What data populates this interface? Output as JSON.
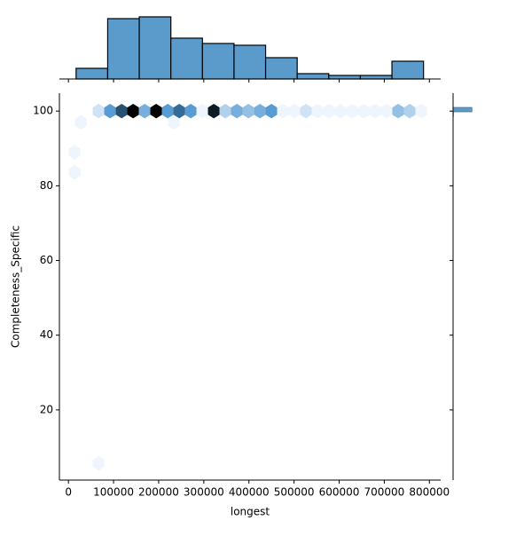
{
  "chart_data": {
    "type": "hexbin",
    "x_label": "longest",
    "y_label": "Completeness_Specific",
    "xlim": [
      -20000,
      825000
    ],
    "ylim": [
      1.2,
      104.8
    ],
    "xticks": [
      0,
      100000,
      200000,
      300000,
      400000,
      500000,
      600000,
      700000,
      800000
    ],
    "yticks": [
      20,
      40,
      60,
      80,
      100
    ],
    "cmap": [
      "#eef5fc",
      "#4a93cf",
      "#000000"
    ],
    "hexbins": {
      "x": [
        66800,
        92300,
        117900,
        143400,
        169000,
        194500,
        220000,
        245600,
        271100,
        296700,
        322200,
        347700,
        373300,
        398800,
        424400,
        449900,
        475400,
        501000,
        526500,
        552100,
        577600,
        603100,
        628700,
        654200,
        679800,
        705300,
        730800,
        756400,
        781900,
        27500,
        233800,
        13750,
        13750,
        66800
      ],
      "y": [
        100,
        100,
        100,
        100,
        100,
        100,
        100,
        100,
        100,
        100,
        100,
        100,
        100,
        100,
        100,
        100,
        100,
        100,
        100,
        100,
        100,
        100,
        100,
        100,
        100,
        100,
        100,
        100,
        100,
        97,
        97,
        89,
        83.6,
        5.7
      ],
      "counts": [
        2,
        6,
        9,
        12,
        5,
        12,
        6,
        8,
        6,
        1,
        11,
        3,
        5,
        4,
        5,
        6,
        1,
        1,
        2,
        1,
        1,
        1,
        1,
        1,
        1,
        1,
        4,
        3,
        1,
        1,
        1,
        1,
        1,
        1
      ]
    },
    "marginal_x": {
      "type": "histogram",
      "color": "#5b9bcb",
      "bins": [
        17000,
        87000,
        157000,
        227000,
        297000,
        367000,
        437000,
        507000,
        577000,
        647000,
        717000,
        787000
      ],
      "counts": [
        6,
        34,
        35,
        23,
        20,
        19,
        12,
        3,
        2,
        2,
        10
      ],
      "ylim": [
        0,
        42
      ]
    },
    "marginal_y": {
      "type": "histogram",
      "color": "#5b9bcb",
      "bins": [
        98.6,
        99.8,
        101.0
      ],
      "counts": [
        3,
        140
      ],
      "xlim": [
        0,
        420
      ]
    }
  }
}
